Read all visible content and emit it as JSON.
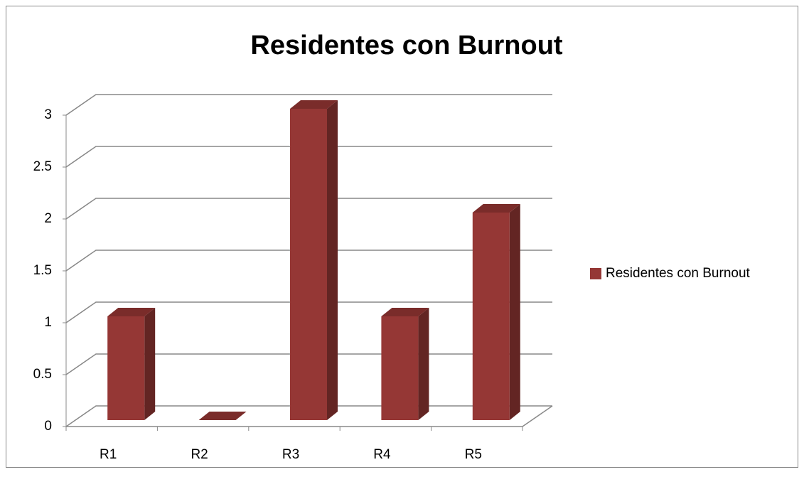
{
  "chart_data": {
    "type": "bar3d",
    "title": "Residentes con Burnout",
    "categories": [
      "R1",
      "R2",
      "R3",
      "R4",
      "R5"
    ],
    "series": [
      {
        "name": "Residentes con Burnout",
        "color": "#953735",
        "values": [
          1,
          0,
          3,
          1,
          2
        ]
      }
    ],
    "ylim": [
      0,
      3
    ],
    "yticks": [
      0,
      0.5,
      1,
      1.5,
      2,
      2.5,
      3
    ],
    "grid": true,
    "legend": "right"
  }
}
